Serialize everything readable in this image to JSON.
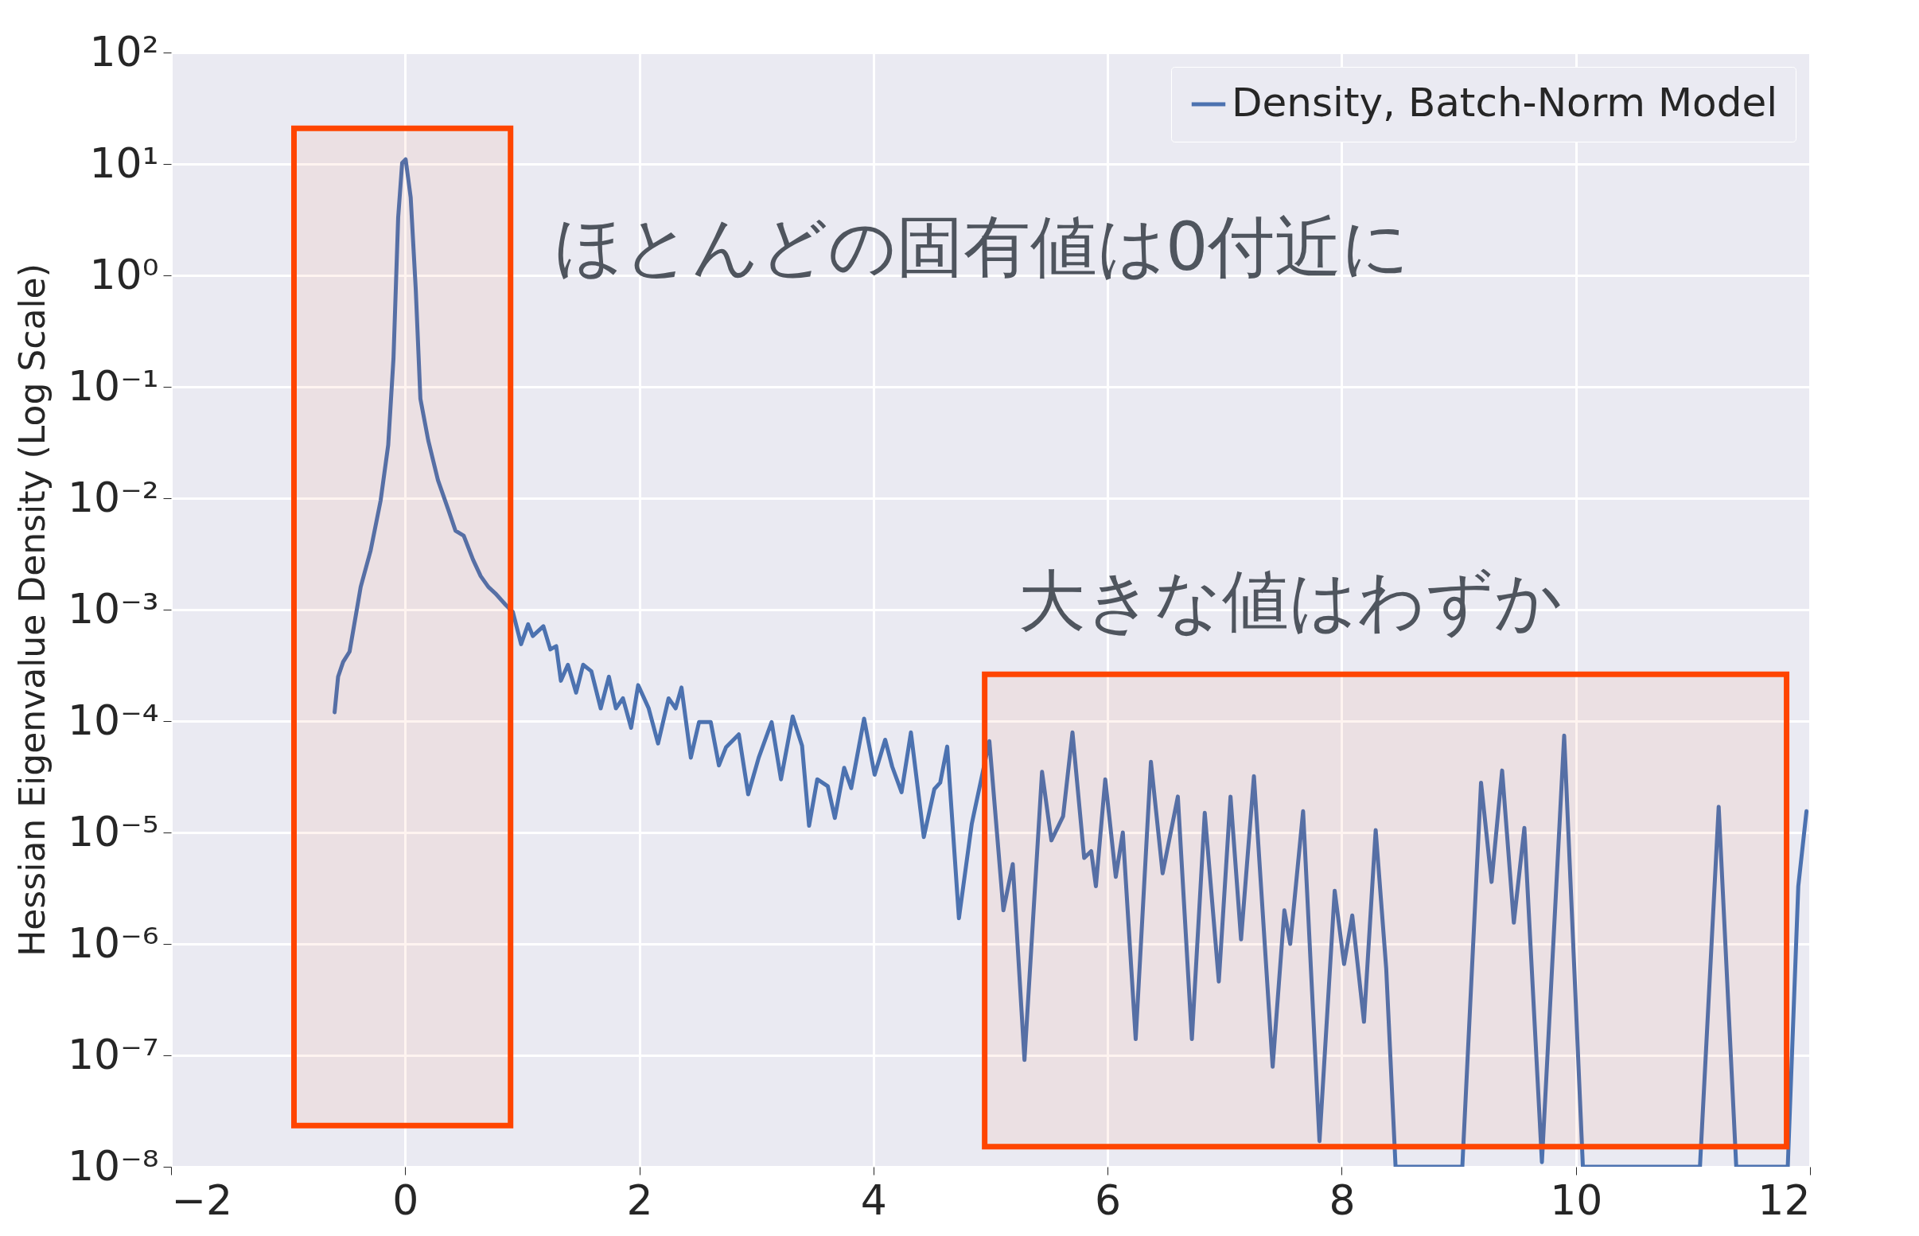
{
  "chart_data": {
    "type": "line",
    "ylabel": "Hessian Eigenvalue Density (Log Scale)",
    "x": [
      -0.603,
      -0.573,
      -0.53,
      -0.475,
      -0.38,
      -0.295,
      -0.21,
      -0.145,
      -0.1,
      -0.06,
      -0.026,
      0.004,
      0.047,
      0.09,
      0.13,
      0.197,
      0.28,
      0.37,
      0.43,
      0.5,
      0.58,
      0.645,
      0.71,
      0.77,
      0.86,
      0.92,
      0.99,
      1.05,
      1.09,
      1.18,
      1.24,
      1.29,
      1.33,
      1.39,
      1.46,
      1.52,
      1.59,
      1.67,
      1.74,
      1.8,
      1.86,
      1.93,
      1.99,
      2.08,
      2.16,
      2.25,
      2.31,
      2.36,
      2.44,
      2.51,
      2.61,
      2.68,
      2.74,
      2.85,
      2.93,
      3.02,
      3.13,
      3.21,
      3.31,
      3.39,
      3.45,
      3.52,
      3.61,
      3.67,
      3.75,
      3.81,
      3.92,
      4.01,
      4.1,
      4.16,
      4.24,
      4.32,
      4.43,
      4.52,
      4.57,
      4.63,
      4.73,
      4.84,
      4.99,
      5.11,
      5.19,
      5.29,
      5.44,
      5.52,
      5.62,
      5.7,
      5.8,
      5.86,
      5.9,
      5.98,
      6.07,
      6.13,
      6.24,
      6.37,
      6.47,
      6.6,
      6.72,
      6.83,
      6.95,
      7.05,
      7.14,
      7.25,
      7.41,
      7.51,
      7.56,
      7.67,
      7.81,
      7.94,
      8.02,
      8.09,
      8.19,
      8.29,
      8.38,
      8.46,
      9.03,
      9.19,
      9.28,
      9.37,
      9.47,
      9.56,
      9.71,
      9.9,
      10.06,
      11.06,
      11.22,
      11.37,
      11.81,
      11.9,
      11.97
    ],
    "series": [
      {
        "name": "Density, Batch-Norm Model",
        "color": "#4c72b0",
        "values": [
          0.00012,
          0.00025,
          0.00034,
          0.00042,
          0.0016,
          0.0034,
          0.0095,
          0.03,
          0.18,
          3.3,
          10.2,
          11,
          5.0,
          0.76,
          0.078,
          0.033,
          0.0145,
          0.0078,
          0.0051,
          0.0046,
          0.0028,
          0.002,
          0.0016,
          0.0014,
          0.0011,
          0.00095,
          0.00049,
          0.00074,
          0.00058,
          0.00071,
          0.00044,
          0.00047,
          0.00023,
          0.00032,
          0.00018,
          0.00032,
          0.00028,
          0.00013,
          0.00025,
          0.00013,
          0.00016,
          8.7e-05,
          0.00021,
          0.00013,
          6.3e-05,
          0.00016,
          0.00013,
          0.0002,
          4.7e-05,
          9.8e-05,
          9.8e-05,
          4e-05,
          5.8e-05,
          7.6e-05,
          2.2e-05,
          4.7e-05,
          9.8e-05,
          3e-05,
          0.00011,
          6e-05,
          1.15e-05,
          3e-05,
          2.6e-05,
          1.35e-05,
          3.8e-05,
          2.5e-05,
          0.000105,
          3.3e-05,
          6.8e-05,
          3.9e-05,
          2.3e-05,
          7.9e-05,
          9.1e-06,
          2.45e-05,
          2.8e-05,
          5.9e-05,
          1.7e-06,
          1.2e-05,
          6.6e-05,
          2e-06,
          5.2e-06,
          9.1e-08,
          3.5e-05,
          8.5e-06,
          1.4e-05,
          7.9e-05,
          5.9e-06,
          6.8e-06,
          3.3e-06,
          3e-05,
          4e-06,
          1e-05,
          1.4e-07,
          4.3e-05,
          4.3e-06,
          2.1e-05,
          1.4e-07,
          1.5e-05,
          4.6e-07,
          2.1e-05,
          1.1e-06,
          3.2e-05,
          7.9e-08,
          2e-06,
          1e-06,
          1.55e-05,
          1.7e-08,
          3e-06,
          6.6e-07,
          1.8e-06,
          2e-07,
          1.05e-05,
          6e-07,
          1e-08,
          1e-08,
          2.8e-05,
          3.6e-06,
          3.6e-05,
          1.55e-06,
          1.1e-05,
          1.1e-08,
          7.4e-05,
          1e-08,
          1e-08,
          1.7e-05,
          1e-08,
          1e-08,
          3.3e-06,
          1.55e-05
        ]
      }
    ],
    "xlim": [
      -2,
      12
    ],
    "xticks": [
      {
        "value": -2,
        "label": "−2"
      },
      0,
      2,
      4,
      6,
      8,
      10,
      12
    ],
    "ylim": [
      1e-08,
      100
    ],
    "yticks": [
      {
        "value": 1e-08,
        "label": "10⁻⁸"
      },
      {
        "value": 1e-07,
        "label": "10⁻⁷"
      },
      {
        "value": 1e-06,
        "label": "10⁻⁶"
      },
      {
        "value": 1e-05,
        "label": "10⁻⁵"
      },
      {
        "value": 0.0001,
        "label": "10⁻⁴"
      },
      {
        "value": 0.001,
        "label": "10⁻³"
      },
      {
        "value": 0.01,
        "label": "10⁻²"
      },
      {
        "value": 0.1,
        "label": "10⁻¹"
      },
      {
        "value": 1,
        "label": "10⁰"
      },
      {
        "value": 10,
        "label": "10¹"
      },
      {
        "value": 100,
        "label": "10²"
      }
    ],
    "log": "y",
    "grid": true,
    "legend": "top right",
    "annotations": [
      "ほとんどの固有値は0付近に",
      "大きな値はわずか"
    ],
    "bands": [
      {
        "axis": "x",
        "from": -0.95,
        "to": 0.9,
        "color": "#ff4500"
      },
      {
        "axis": "x",
        "from": 4.95,
        "to": 11.8,
        "color": "#ff4500"
      }
    ]
  }
}
